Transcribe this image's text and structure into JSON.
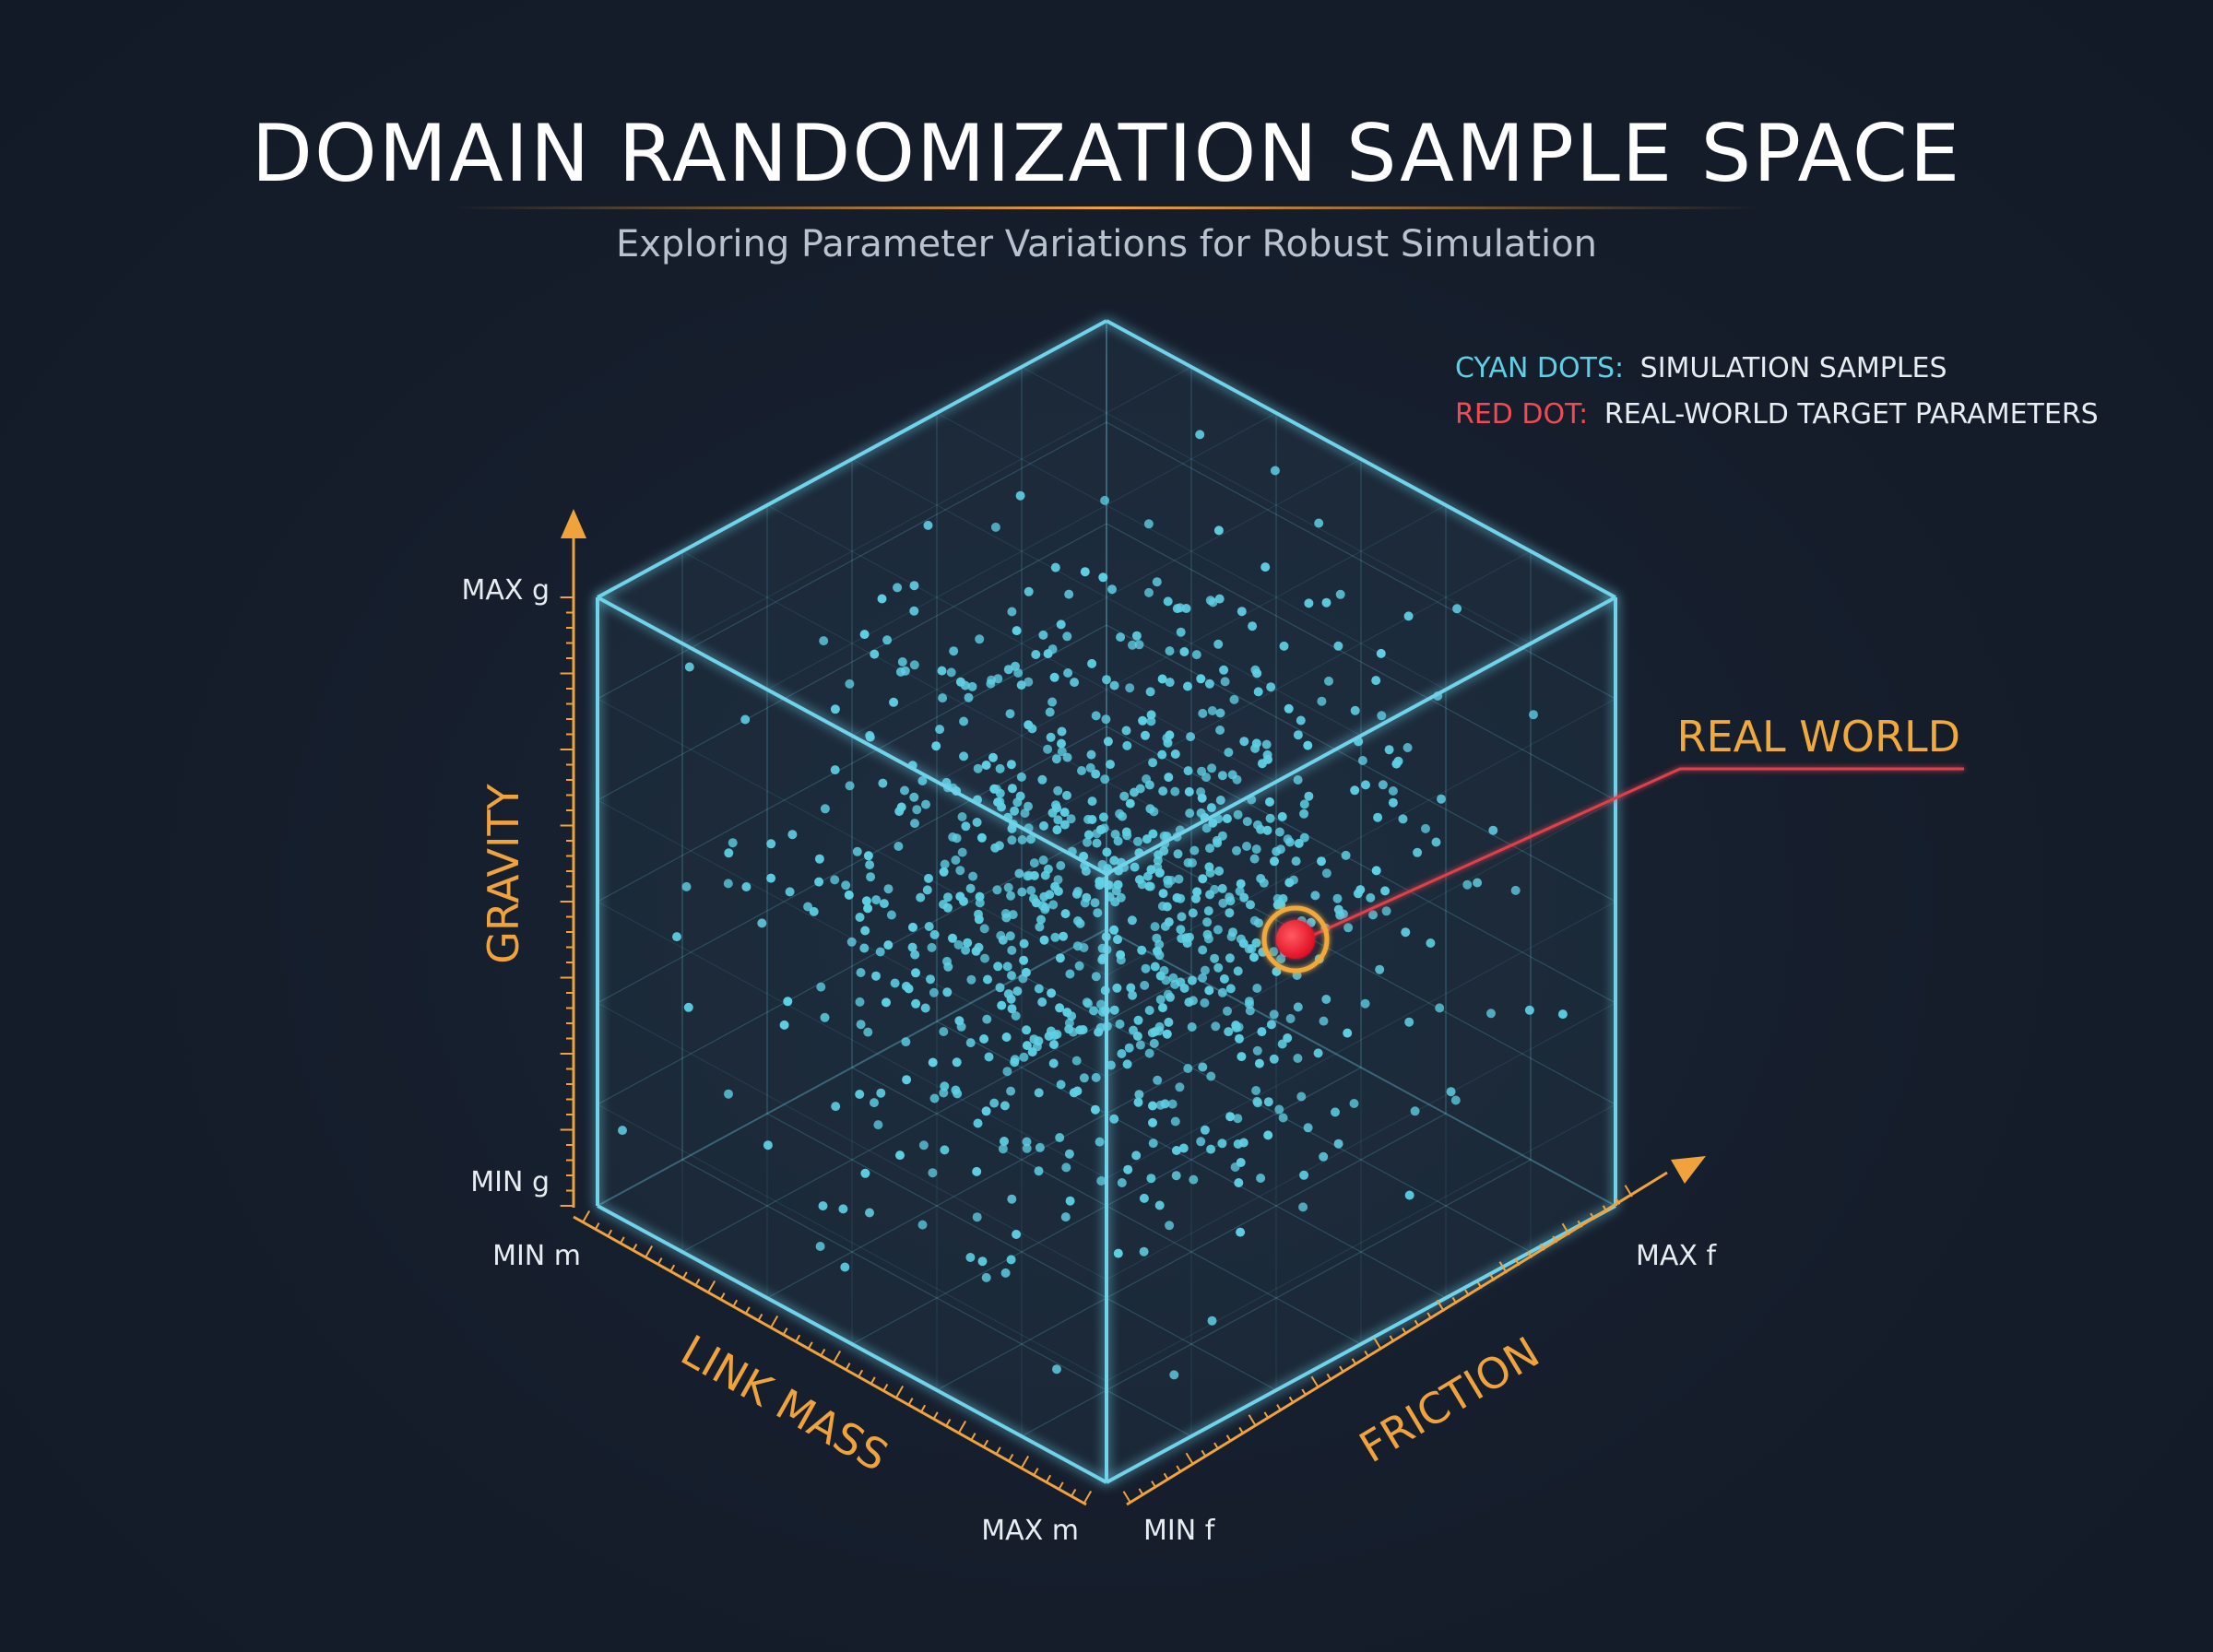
{
  "header": {
    "title": "DOMAIN RANDOMIZATION SAMPLE SPACE",
    "subtitle": "Exploring Parameter Variations for Robust Simulation"
  },
  "legend": {
    "cyan_key": "CYAN DOTS:",
    "cyan_text": "SIMULATION SAMPLES",
    "red_key": "RED DOT:",
    "red_text": "REAL-WORLD TARGET PARAMETERS"
  },
  "callout": {
    "label": "REAL WORLD"
  },
  "axes": {
    "gravity": {
      "label": "GRAVITY",
      "min": "MIN g",
      "max": "MAX g"
    },
    "link_mass": {
      "label": "LINK MASS",
      "min": "MIN m",
      "max": "MAX m"
    },
    "friction": {
      "label": "FRICTION",
      "min": "MIN f",
      "max": "MAX f"
    }
  },
  "colors": {
    "background": "#151d2b",
    "cube_edge": "#6fd3ea",
    "sample_dot": "#5fd0e4",
    "target_dot": "#ff2a3a",
    "target_ring": "#f2a93b",
    "axis": "#f0a33c",
    "callout_line": "#e0404a",
    "title": "#ffffff",
    "subtitle": "#b9c3cf"
  },
  "samples": {
    "count": 900,
    "distribution": "concentrated toward cube center"
  },
  "target": {
    "link_mass": 0.3,
    "friction": 0.5,
    "gravity": 0.6
  }
}
